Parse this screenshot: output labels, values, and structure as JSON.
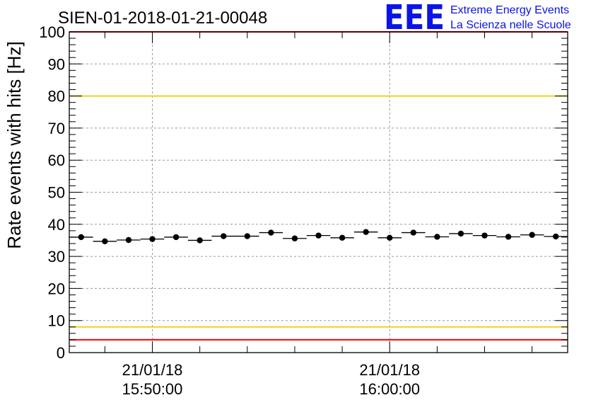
{
  "logo": {
    "letters": "EEE",
    "line1": "Extreme Energy Events",
    "line2": "La Scienza nelle Scuole",
    "color": "#0a14e6"
  },
  "chart_data": {
    "type": "scatter",
    "title": "SIEN-01-2018-01-21-00048",
    "ylabel": "Rate events with hits [Hz]",
    "xlabel": "",
    "ylim": [
      0,
      100
    ],
    "yticks": [
      0,
      10,
      20,
      30,
      40,
      50,
      60,
      70,
      80,
      90,
      100
    ],
    "xlim": [
      "21/01/18 15:46:30",
      "21/01/18 16:07:30"
    ],
    "xticks": [
      {
        "date": "21/01/18",
        "time": "15:50:00",
        "t": "15:50:00"
      },
      {
        "date": "21/01/18",
        "time": "16:00:00",
        "t": "16:00:00"
      }
    ],
    "grid": true,
    "series": [
      {
        "marker_color": "#000000",
        "bin_width_s": 60,
        "x": [
          "15:47:00",
          "15:48:00",
          "15:49:00",
          "15:50:00",
          "15:51:00",
          "15:52:00",
          "15:53:00",
          "15:54:00",
          "15:55:00",
          "15:56:00",
          "15:57:00",
          "15:58:00",
          "15:59:00",
          "16:00:00",
          "16:01:00",
          "16:02:00",
          "16:03:00",
          "16:04:00",
          "16:05:00",
          "16:06:00",
          "16:07:00"
        ],
        "y": [
          36.0,
          34.7,
          35.1,
          35.4,
          36.0,
          35.0,
          36.3,
          36.3,
          37.4,
          35.6,
          36.5,
          35.8,
          37.6,
          35.8,
          37.4,
          36.1,
          37.1,
          36.5,
          36.1,
          36.7,
          36.2
        ]
      }
    ],
    "reference_lines": [
      {
        "y": 100,
        "color": "#ff0000"
      },
      {
        "y": 80,
        "color": "#f0d21e"
      },
      {
        "y": 8,
        "color": "#f0d21e"
      },
      {
        "y": 4,
        "color": "#ff0000"
      }
    ]
  }
}
